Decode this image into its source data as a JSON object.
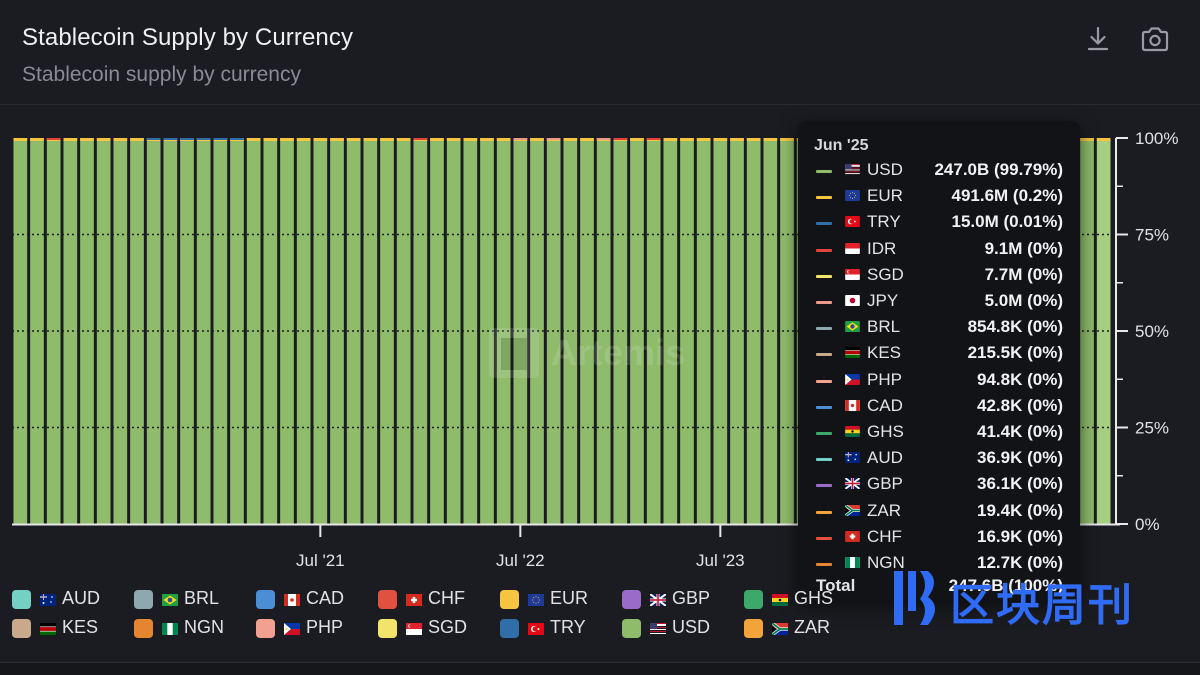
{
  "header": {
    "title": "Stablecoin Supply by Currency",
    "subtitle": "Stablecoin supply by currency"
  },
  "icons": {
    "download": "download-icon",
    "camera": "camera-icon"
  },
  "watermark_brand": "Artemis",
  "overlay_brand": "区块周刊",
  "colors": {
    "USD": "#8fbc6b",
    "EUR": "#f5c542",
    "TRY": "#2f6ea8",
    "IDR": "#e0443c",
    "SGD": "#f2e46b",
    "JPY": "#e99a8d",
    "BRL": "#8fa7ae",
    "KES": "#c9a98a",
    "PHP": "#f2a08f",
    "CAD": "#4a8fd6",
    "GHS": "#3ca86b",
    "AUD": "#74cfc4",
    "GBP": "#9b6bc9",
    "ZAR": "#f2a33a",
    "CHF": "#e0513f",
    "NGN": "#e5852f"
  },
  "tooltip": {
    "date": "Jun '25",
    "rows": [
      {
        "currency": "USD",
        "value": "247.0B (99.79%)"
      },
      {
        "currency": "EUR",
        "value": "491.6M (0.2%)"
      },
      {
        "currency": "TRY",
        "value": "15.0M (0.01%)"
      },
      {
        "currency": "IDR",
        "value": "9.1M (0%)"
      },
      {
        "currency": "SGD",
        "value": "7.7M (0%)"
      },
      {
        "currency": "JPY",
        "value": "5.0M (0%)"
      },
      {
        "currency": "BRL",
        "value": "854.8K (0%)"
      },
      {
        "currency": "KES",
        "value": "215.5K (0%)"
      },
      {
        "currency": "PHP",
        "value": "94.8K (0%)"
      },
      {
        "currency": "CAD",
        "value": "42.8K (0%)"
      },
      {
        "currency": "GHS",
        "value": "41.4K (0%)"
      },
      {
        "currency": "AUD",
        "value": "36.9K (0%)"
      },
      {
        "currency": "GBP",
        "value": "36.1K (0%)"
      },
      {
        "currency": "ZAR",
        "value": "19.4K (0%)"
      },
      {
        "currency": "CHF",
        "value": "16.9K (0%)"
      },
      {
        "currency": "NGN",
        "value": "12.7K (0%)"
      }
    ],
    "total_label": "Total",
    "total_value": "247.6B (100%)"
  },
  "legend": [
    {
      "currency": "AUD"
    },
    {
      "currency": "BRL"
    },
    {
      "currency": "CAD"
    },
    {
      "currency": "CHF"
    },
    {
      "currency": "EUR"
    },
    {
      "currency": "GBP"
    },
    {
      "currency": "GHS"
    },
    {
      "currency": "KES"
    },
    {
      "currency": "NGN"
    },
    {
      "currency": "PHP"
    },
    {
      "currency": "SGD"
    },
    {
      "currency": "TRY"
    },
    {
      "currency": "USD"
    },
    {
      "currency": "ZAR"
    }
  ],
  "chart_data": {
    "type": "bar",
    "stacked": "percent",
    "title": "Stablecoin Supply by Currency",
    "subtitle": "Stablecoin supply by currency",
    "x_tick_labels": [
      "Jul '21",
      "Jul '22",
      "Jul '23"
    ],
    "y_tick_labels": [
      "100%",
      "75%",
      "50%",
      "25%",
      "0%"
    ],
    "ylim": [
      0,
      100
    ],
    "start_month": "Jan '20",
    "end_month": "Jun '25",
    "months": 66,
    "series": [
      {
        "name": "USD",
        "values_pct": 99.79
      },
      {
        "name": "EUR",
        "values_pct": 0.2
      },
      {
        "name": "TRY",
        "values_pct": 0.01
      }
    ],
    "highlighted_month": "Jun '25",
    "grid": true,
    "legend_position": "bottom"
  }
}
